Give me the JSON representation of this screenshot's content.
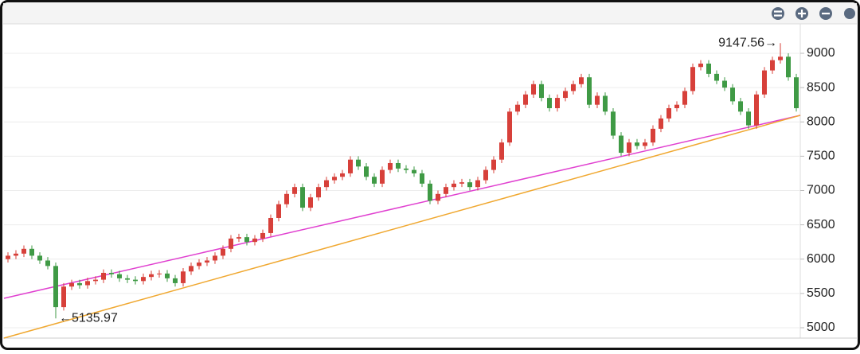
{
  "chart_data": {
    "type": "candlestick",
    "up_color": "#d7403a",
    "down_color": "#3f9a45",
    "open": [
      6000,
      6050,
      6080,
      6150,
      6050,
      5980,
      5900,
      5300,
      5600,
      5650,
      5620,
      5680,
      5700,
      5800,
      5780,
      5720,
      5700,
      5680,
      5740,
      5780,
      5790,
      5720,
      5650,
      5820,
      5900,
      5950,
      5980,
      6050,
      6150,
      6300,
      6320,
      6250,
      6300,
      6380,
      6600,
      6800,
      6950,
      7050,
      6750,
      6900,
      7050,
      7150,
      7200,
      7250,
      7450,
      7350,
      7200,
      7100,
      7300,
      7400,
      7320,
      7300,
      7250,
      7100,
      6850,
      6950,
      7050,
      7100,
      7120,
      7050,
      7150,
      7300,
      7450,
      7700,
      8150,
      8250,
      8400,
      8550,
      8350,
      8200,
      8350,
      8450,
      8550,
      8650,
      8250,
      8380,
      8150,
      7800,
      7550,
      7700,
      7650,
      7700,
      7900,
      8050,
      8200,
      8250,
      8450,
      8800,
      8850,
      8700,
      8600,
      8500,
      8300,
      8150,
      7950,
      8400,
      8750,
      8900,
      8950,
      8650
    ],
    "high": [
      6100,
      6130,
      6200,
      6200,
      6100,
      6030,
      5950,
      5650,
      5700,
      5700,
      5730,
      5750,
      5850,
      5850,
      5830,
      5770,
      5750,
      5790,
      5830,
      5840,
      5840,
      5770,
      5870,
      5950,
      6000,
      6030,
      6100,
      6200,
      6350,
      6370,
      6370,
      6350,
      6430,
      6650,
      6850,
      7000,
      7100,
      7100,
      6950,
      7100,
      7200,
      7250,
      7300,
      7500,
      7500,
      7400,
      7250,
      7350,
      7450,
      7450,
      7370,
      7350,
      7300,
      7150,
      7000,
      7100,
      7150,
      7170,
      7170,
      7200,
      7350,
      7500,
      7750,
      8200,
      8300,
      8450,
      8600,
      8600,
      8400,
      8400,
      8500,
      8600,
      8700,
      8700,
      8430,
      8430,
      8200,
      7850,
      7750,
      7750,
      7750,
      7950,
      8100,
      8250,
      8300,
      8500,
      8850,
      8900,
      8900,
      8750,
      8650,
      8550,
      8350,
      8200,
      8450,
      8800,
      8950,
      9147.56,
      9000,
      8700
    ],
    "low": [
      5950,
      6000,
      6030,
      6000,
      5930,
      5850,
      5135.97,
      5250,
      5550,
      5570,
      5570,
      5630,
      5650,
      5730,
      5670,
      5650,
      5630,
      5630,
      5690,
      5730,
      5670,
      5600,
      5600,
      5770,
      5850,
      5900,
      5930,
      6000,
      6100,
      6250,
      6200,
      6200,
      6250,
      6330,
      6550,
      6750,
      6900,
      6700,
      6700,
      6850,
      7000,
      7100,
      7150,
      7200,
      7300,
      7150,
      7050,
      7050,
      7250,
      7270,
      7250,
      7200,
      7050,
      6800,
      6800,
      6900,
      7000,
      7050,
      7000,
      7000,
      7100,
      7250,
      7400,
      7650,
      8100,
      8200,
      8350,
      8300,
      8150,
      8150,
      8300,
      8400,
      8500,
      8200,
      8200,
      8100,
      7750,
      7500,
      7500,
      7600,
      7600,
      7650,
      7850,
      8000,
      8150,
      8200,
      8400,
      8750,
      8650,
      8550,
      8450,
      8250,
      8100,
      7900,
      7900,
      8350,
      8700,
      8850,
      8600,
      8150
    ],
    "close": [
      6050,
      6080,
      6150,
      6050,
      5980,
      5900,
      5300,
      5600,
      5650,
      5620,
      5680,
      5700,
      5800,
      5780,
      5720,
      5700,
      5680,
      5740,
      5780,
      5790,
      5720,
      5650,
      5820,
      5900,
      5950,
      5980,
      6050,
      6150,
      6300,
      6320,
      6250,
      6300,
      6380,
      6600,
      6800,
      6950,
      7050,
      6750,
      6900,
      7050,
      7150,
      7200,
      7250,
      7450,
      7350,
      7200,
      7100,
      7300,
      7400,
      7320,
      7300,
      7250,
      7100,
      6850,
      6950,
      7050,
      7100,
      7120,
      7050,
      7150,
      7300,
      7450,
      7700,
      8150,
      8250,
      8400,
      8550,
      8350,
      8200,
      8350,
      8450,
      8550,
      8650,
      8250,
      8380,
      8150,
      7800,
      7550,
      7700,
      7650,
      7700,
      7900,
      8050,
      8200,
      8250,
      8450,
      8800,
      8850,
      8700,
      8600,
      8500,
      8300,
      8150,
      7950,
      8400,
      8750,
      8900,
      8950,
      8650,
      8200
    ],
    "max_label": {
      "value": 9147.56,
      "label": "9147.56→"
    },
    "min_label": {
      "value": 5135.97,
      "label": "←5135.97"
    },
    "trendlines": [
      {
        "color": "#e040d0",
        "start": 5429,
        "end": 8096
      },
      {
        "color": "#f0a830",
        "start": 4849,
        "end": 8096
      }
    ],
    "ylim": [
      4849,
      9429
    ],
    "yticks": [
      5000,
      5500,
      6000,
      6500,
      7000,
      7500,
      8000,
      8500,
      9000
    ],
    "grid": true
  }
}
